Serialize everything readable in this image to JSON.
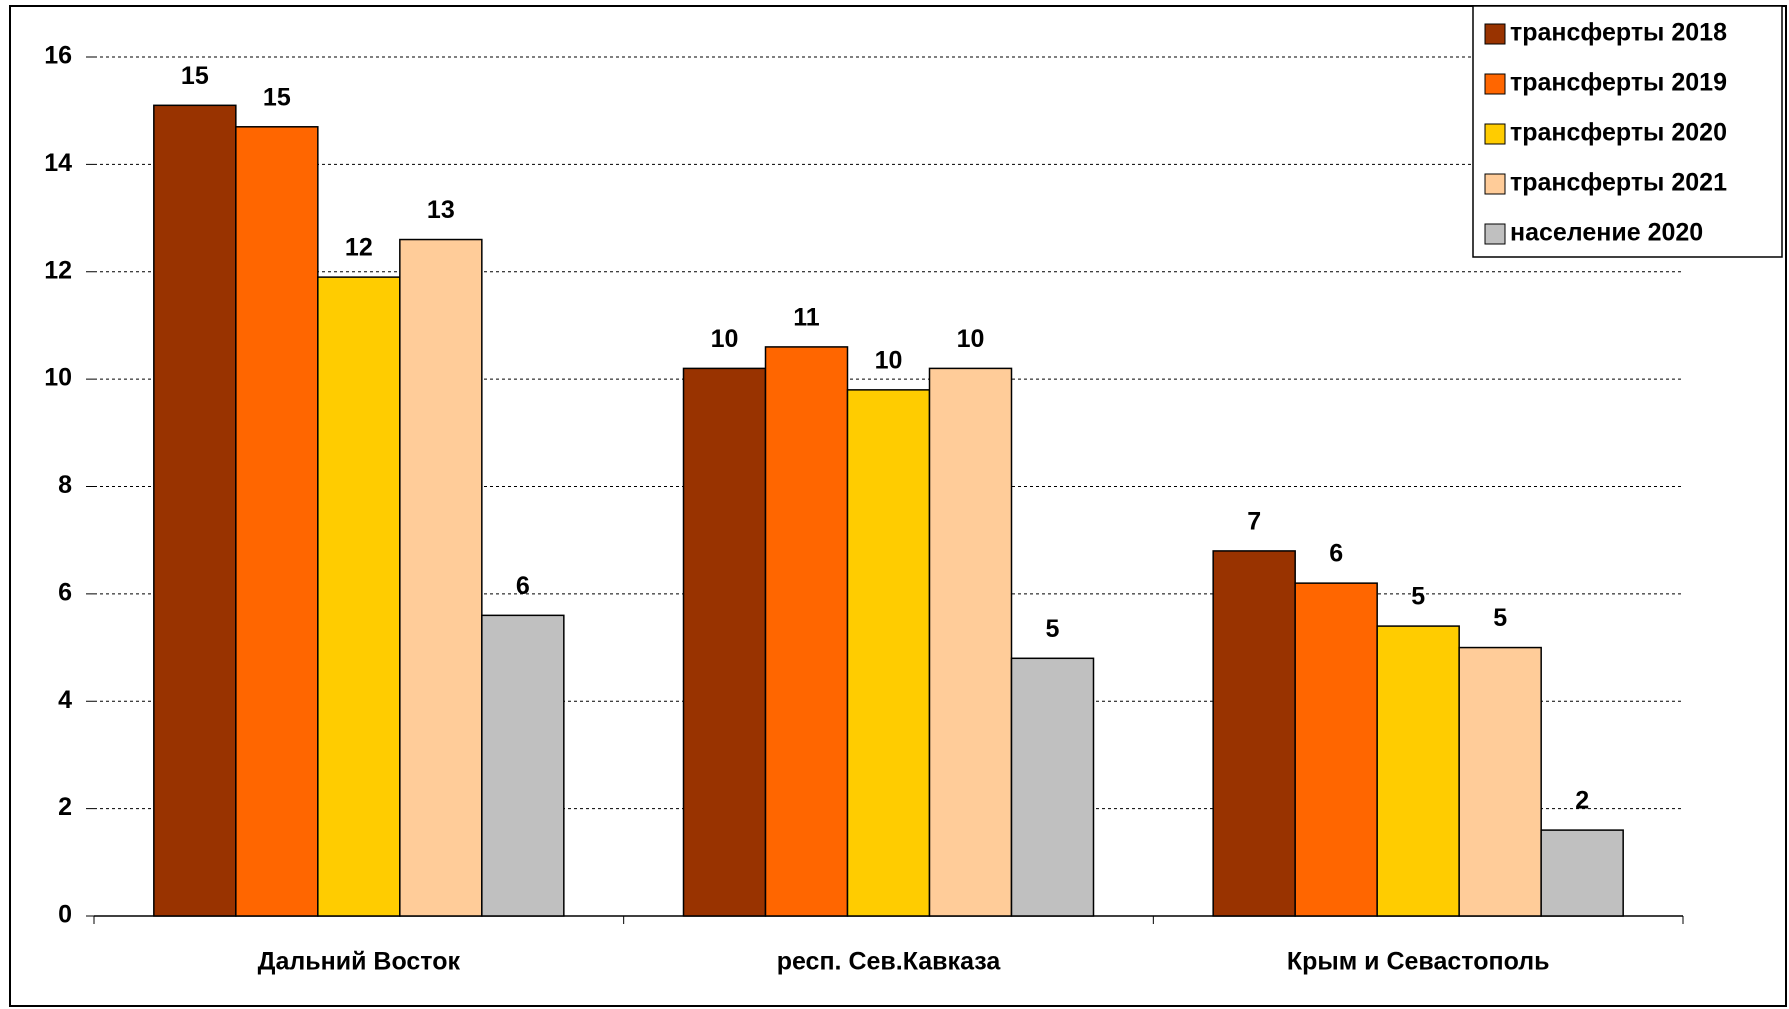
{
  "chart_data": {
    "type": "bar",
    "categories": [
      "Дальний Восток",
      "респ. Сев.Кавказа",
      "Крым и Севастополь"
    ],
    "series": [
      {
        "name": "трансферты 2018",
        "color": "#993300",
        "values": [
          15.1,
          10.2,
          6.8
        ],
        "value_labels": [
          "15",
          "10",
          "7"
        ]
      },
      {
        "name": "трансферты 2019",
        "color": "#ff6600",
        "values": [
          14.7,
          10.6,
          6.2
        ],
        "value_labels": [
          "15",
          "11",
          "6"
        ]
      },
      {
        "name": "трансферты 2020",
        "color": "#ffcc00",
        "values": [
          11.9,
          9.8,
          5.4
        ],
        "value_labels": [
          "12",
          "10",
          "5"
        ]
      },
      {
        "name": "трансферты 2021",
        "color": "#ffcc99",
        "values": [
          12.6,
          10.2,
          5.0
        ],
        "value_labels": [
          "13",
          "10",
          "5"
        ]
      },
      {
        "name": "население 2020",
        "color": "#c0c0c0",
        "values": [
          5.6,
          4.8,
          1.6
        ],
        "value_labels": [
          "6",
          "5",
          "2"
        ]
      }
    ],
    "ylim": [
      0,
      16
    ],
    "yticks": [
      0,
      2,
      4,
      6,
      8,
      10,
      12,
      14,
      16
    ],
    "grid": true,
    "legend": "top-right"
  }
}
